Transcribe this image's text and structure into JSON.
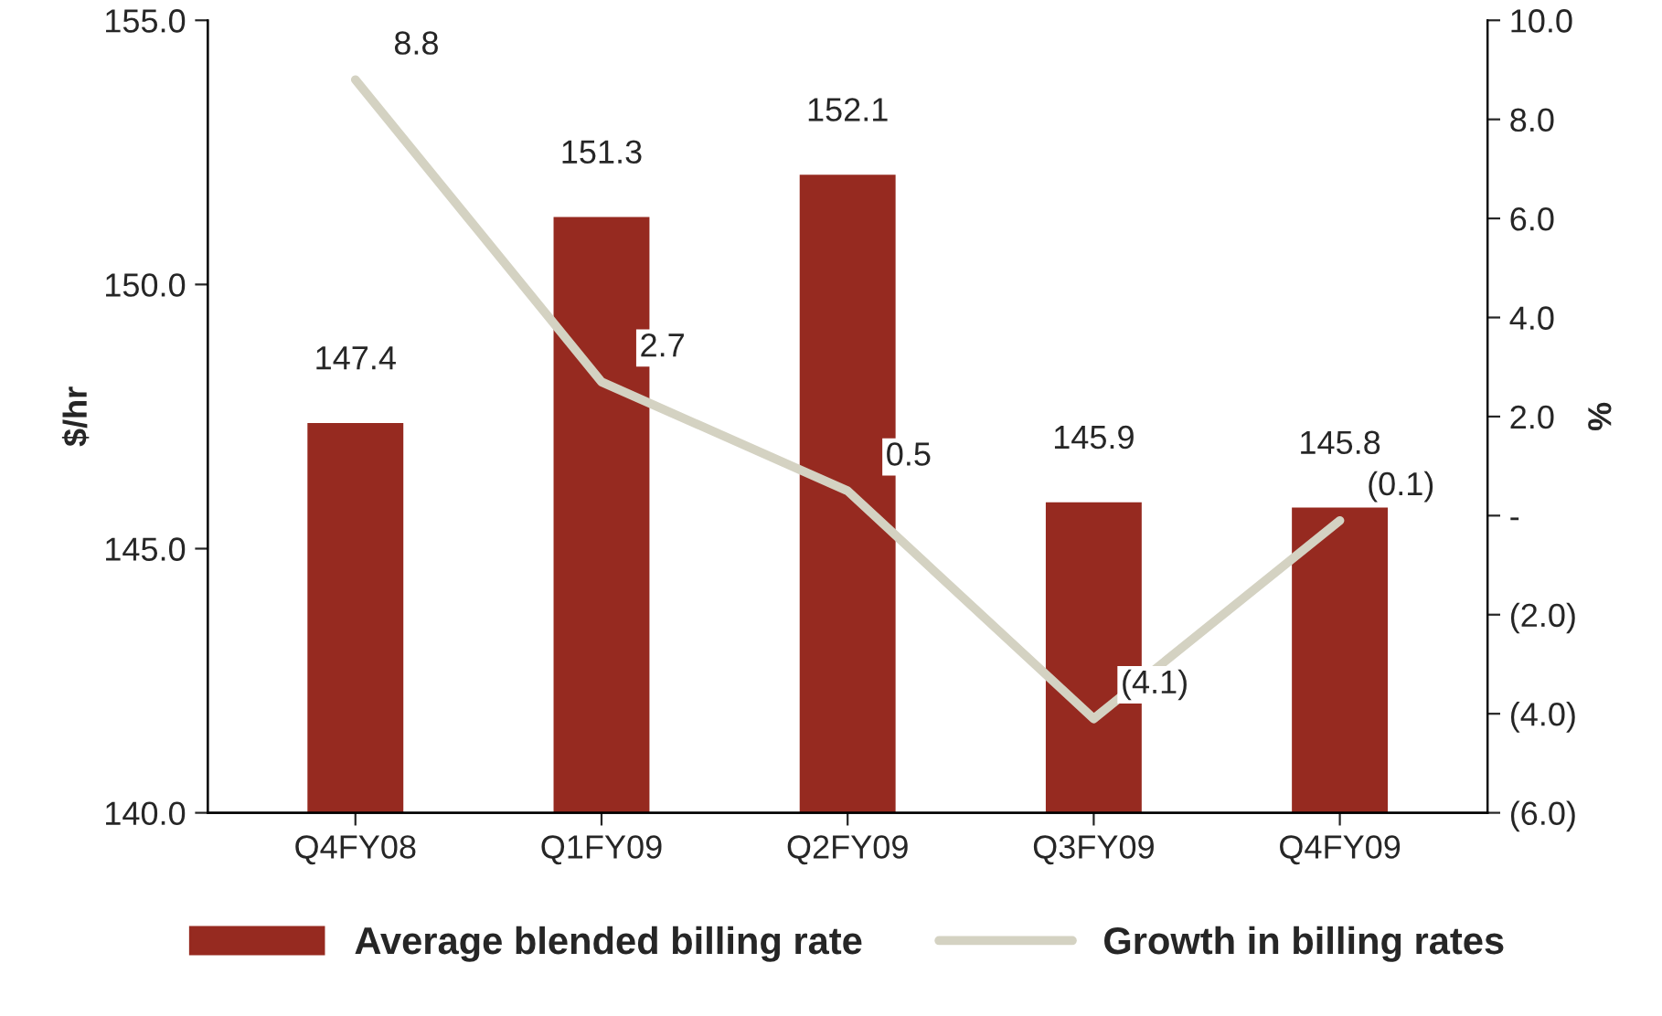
{
  "chart_data": {
    "type": "bar",
    "ylabel": "$/hr",
    "y2label": "%",
    "categories": [
      "Q4FY08",
      "Q1FY09",
      "Q2FY09",
      "Q3FY09",
      "Q4FY09"
    ],
    "series": [
      {
        "name": "Average blended billing rate",
        "color": "#962a20",
        "values": [
          147.4,
          151.3,
          152.1,
          145.9,
          145.8
        ],
        "value_labels": [
          "147.4",
          "151.3",
          "152.1",
          "145.9",
          "145.8"
        ]
      },
      {
        "name": "Growth in billing rates",
        "type": "line",
        "axis": "y2",
        "color": "#d4d2c2",
        "values": [
          8.8,
          2.7,
          0.5,
          -4.1,
          -0.1
        ],
        "value_labels": [
          "8.8",
          "2.7",
          "0.5",
          "(4.1)",
          "(0.1)"
        ]
      }
    ],
    "ylim": [
      140,
      155
    ],
    "yticks": [
      {
        "value": 140,
        "label": "140.0"
      },
      {
        "value": 145,
        "label": "145.0"
      },
      {
        "value": 150,
        "label": "150.0"
      },
      {
        "value": 155,
        "label": "155.0"
      }
    ],
    "y2lim": [
      -6,
      10
    ],
    "y2ticks": [
      {
        "value": -6,
        "label": "(6.0)"
      },
      {
        "value": -4,
        "label": "(4.0)"
      },
      {
        "value": -2,
        "label": "(2.0)"
      },
      {
        "value": 0,
        "label": "-"
      },
      {
        "value": 2,
        "label": "2.0"
      },
      {
        "value": 4,
        "label": "4.0"
      },
      {
        "value": 6,
        "label": "6.0"
      },
      {
        "value": 8,
        "label": "8.0"
      },
      {
        "value": 10,
        "label": "10.0"
      }
    ],
    "grid": false,
    "legend": "bottom",
    "line_style": "solid",
    "marker": "none"
  }
}
